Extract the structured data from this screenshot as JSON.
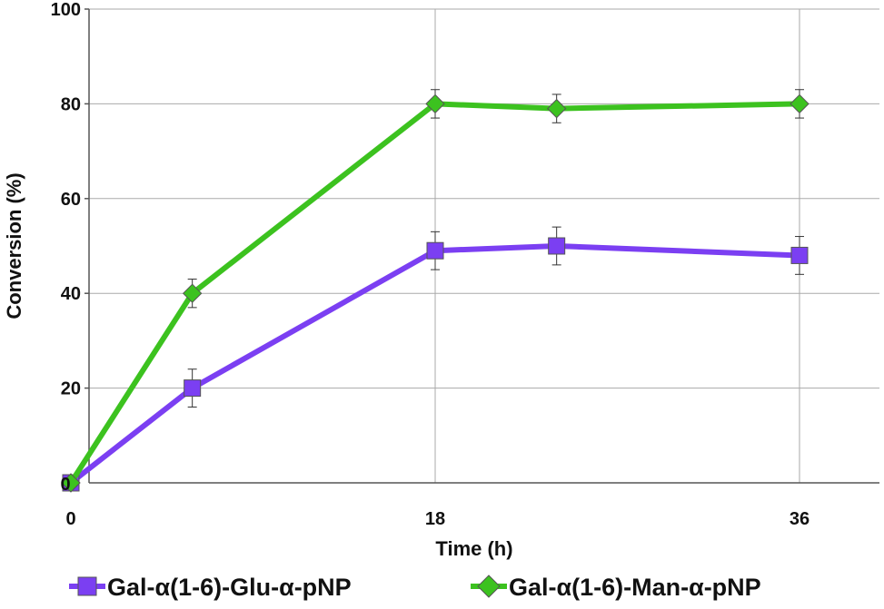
{
  "chart_data": {
    "type": "line",
    "xlabel": "Time (h)",
    "ylabel": "Conversion (%)",
    "xlim": [
      0,
      40
    ],
    "ylim": [
      0,
      100
    ],
    "x_ticks": [
      "0",
      "18",
      "36"
    ],
    "x_tick_values": [
      0,
      18,
      36
    ],
    "y_ticks": [
      "20",
      "40",
      "60",
      "80",
      "100"
    ],
    "y_tick_values": [
      20,
      40,
      60,
      80,
      100
    ],
    "origin_label": "0",
    "grid": "horizontal",
    "legend_placement": "bottom",
    "series": [
      {
        "name": "Gal-α(1-6)-Glu-α-pNP",
        "color": "#7b3ff2",
        "marker": "square",
        "x": [
          0,
          6,
          18,
          24,
          36
        ],
        "y": [
          0,
          20,
          49,
          50,
          48
        ],
        "error": [
          0,
          4,
          4,
          4,
          4
        ]
      },
      {
        "name": "Gal-α(1-6)-Man-α-pNP",
        "color": "#3cc21f",
        "marker": "diamond",
        "x": [
          0,
          6,
          18,
          24,
          36
        ],
        "y": [
          0,
          40,
          80,
          79,
          80
        ],
        "error": [
          0,
          3,
          3,
          3,
          3
        ]
      }
    ]
  }
}
